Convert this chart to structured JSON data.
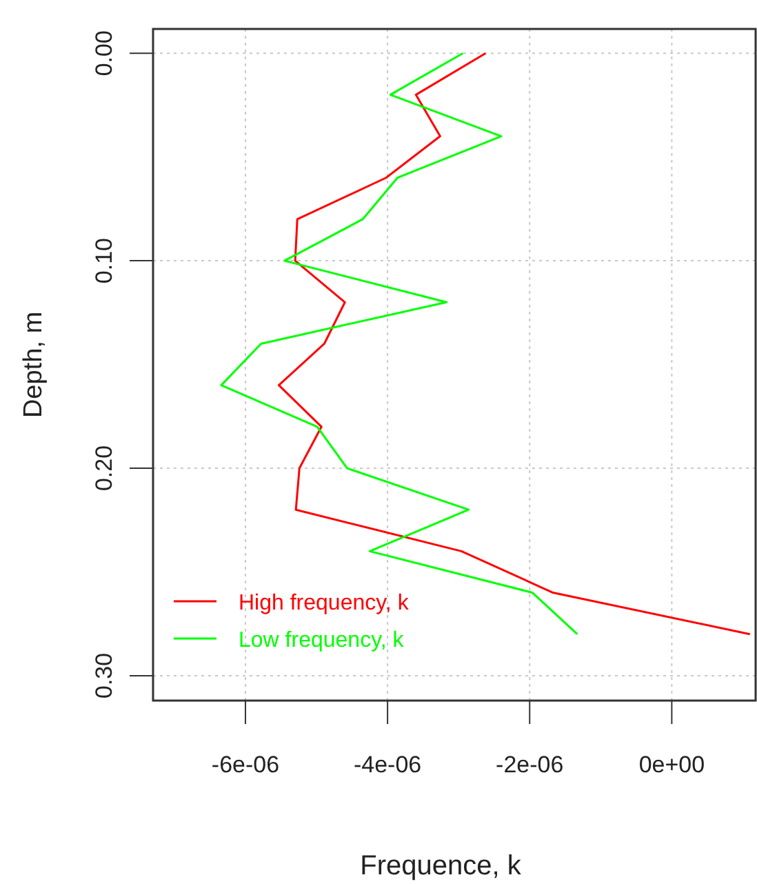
{
  "chart_data": {
    "type": "line",
    "xlabel": "Frequence, k",
    "ylabel": "Depth, m",
    "xlim": [
      -7.3e-06,
      1.18e-06
    ],
    "ylim": [
      0.312,
      -0.0117
    ],
    "xticks": [
      {
        "value": -6e-06,
        "label": "-6e-06"
      },
      {
        "value": -4e-06,
        "label": "-4e-06"
      },
      {
        "value": -2e-06,
        "label": "-2e-06"
      },
      {
        "value": 0,
        "label": "0e+00"
      }
    ],
    "yticks": [
      {
        "value": 0,
        "label": "0.00"
      },
      {
        "value": 0.1,
        "label": "0.10"
      },
      {
        "value": 0.2,
        "label": "0.20"
      },
      {
        "value": 0.3,
        "label": "0.30"
      }
    ],
    "grid": true,
    "legend": "bottom left",
    "marker": "none",
    "line_style": "solid",
    "series": [
      {
        "name": "High frequency, k",
        "color": "#ff0000",
        "x": [
          -2.62e-06,
          -3.6e-06,
          -3.26e-06,
          -4.02e-06,
          -5.27e-06,
          -5.3e-06,
          -4.6e-06,
          -4.89e-06,
          -5.53e-06,
          -4.93e-06,
          -5.24e-06,
          -5.29e-06,
          -2.96e-06,
          -1.67e-06,
          1.1e-06
        ],
        "values": [
          0,
          0.02,
          0.04,
          0.06,
          0.08,
          0.1,
          0.12,
          0.14,
          0.16,
          0.18,
          0.2,
          0.22,
          0.24,
          0.26,
          0.28
        ]
      },
      {
        "name": "Low frequency, k",
        "color": "#00ff00",
        "x": [
          -2.94e-06,
          -3.96e-06,
          -2.4e-06,
          -3.86e-06,
          -4.35e-06,
          -5.45e-06,
          -3.17e-06,
          -5.78e-06,
          -6.34e-06,
          -4.99e-06,
          -4.57e-06,
          -2.86e-06,
          -4.25e-06,
          -1.96e-06,
          -1.33e-06
        ],
        "values": [
          0,
          0.02,
          0.04,
          0.06,
          0.08,
          0.1,
          0.12,
          0.14,
          0.16,
          0.18,
          0.2,
          0.22,
          0.24,
          0.26,
          0.28
        ]
      }
    ]
  }
}
